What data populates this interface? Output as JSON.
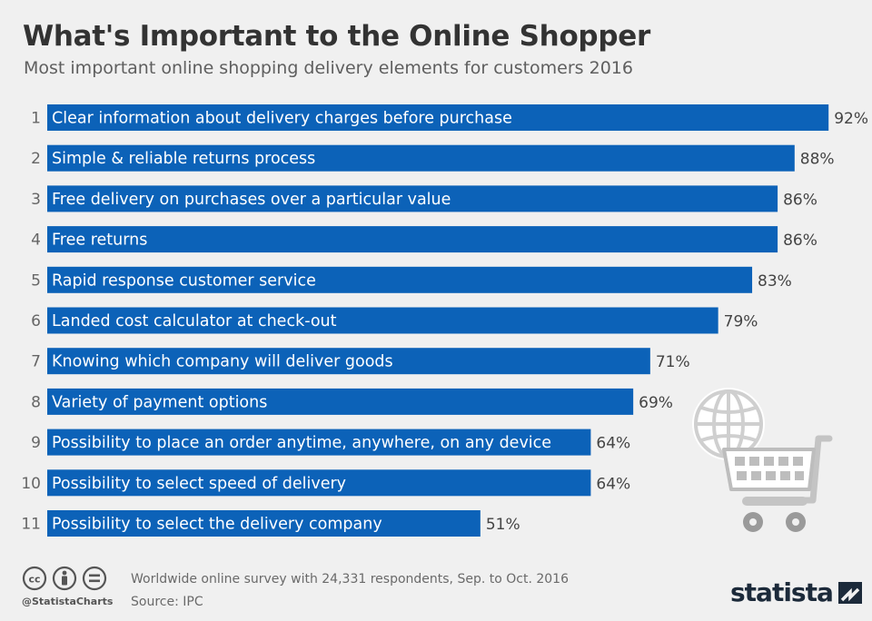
{
  "title": "What's Important to the Online Shopper",
  "subtitle": "Most important online shopping delivery elements for customers 2016",
  "colors": {
    "bar": "#0c62b8",
    "bar_text": "#ffffff",
    "label_text": "#444444",
    "background": "#f0f0f0"
  },
  "chart_data": {
    "type": "bar",
    "orientation": "horizontal",
    "ranks": [
      "1",
      "2",
      "3",
      "4",
      "5",
      "6",
      "7",
      "8",
      "9",
      "10",
      "11"
    ],
    "categories": [
      "Clear information about delivery charges before purchase",
      "Simple & reliable returns process",
      "Free delivery on purchases over a particular value",
      "Free returns",
      "Rapid response customer service",
      "Landed cost calculator at check-out",
      "Knowing which company will deliver goods",
      "Variety of payment options",
      "Possibility to place an order anytime, anywhere, on any device",
      "Possibility to select speed of delivery",
      "Possibility to select the delivery company"
    ],
    "values": [
      92,
      88,
      86,
      86,
      83,
      79,
      71,
      69,
      64,
      64,
      51
    ],
    "value_labels": [
      "92%",
      "88%",
      "86%",
      "86%",
      "83%",
      "79%",
      "71%",
      "69%",
      "64%",
      "64%",
      "51%"
    ],
    "unit": "%",
    "xlim": [
      0,
      100
    ],
    "grid": false,
    "legend": "none"
  },
  "illustration": {
    "icons": [
      "globe-icon",
      "shopping-cart-icon"
    ]
  },
  "footer": {
    "license_icons": [
      "cc-icon",
      "attribution-icon",
      "no-derivatives-icon"
    ],
    "handle": "@StatistaCharts",
    "note": "Worldwide online survey with 24,331 respondents, Sep. to Oct. 2016",
    "source": "Source: IPC",
    "brand": "statista"
  }
}
